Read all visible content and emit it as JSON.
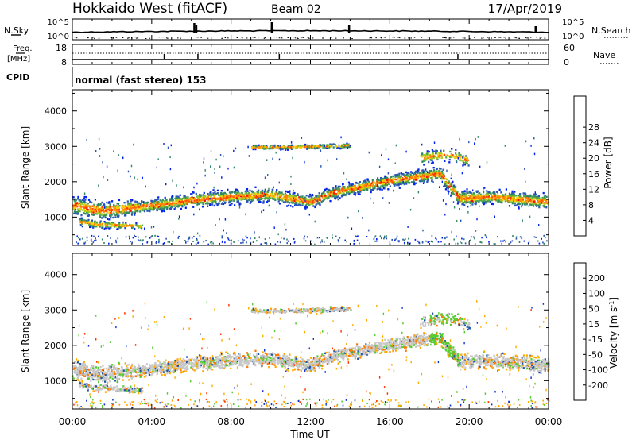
{
  "header": {
    "station": "Hokkaido West (fitACF)",
    "beam": "Beam 02",
    "date": "17/Apr/2019"
  },
  "panels": {
    "noise": {
      "left_label": "N.Sky",
      "right_label": "N.Search",
      "left_ticks": [
        "10^5",
        "10^0"
      ],
      "right_ticks": [
        "10^5",
        "10^0"
      ]
    },
    "freq": {
      "left_label_1": "Freq.",
      "left_label_2": "[MHz]",
      "right_label": "Nave",
      "left_ticks": [
        "18",
        "8"
      ],
      "right_ticks": [
        "60",
        "0"
      ]
    },
    "cpid": {
      "label": "CPID",
      "text": "normal (fast stereo) 153"
    }
  },
  "chart_data": [
    {
      "type": "heatmap",
      "quantity": "Power",
      "ylabel": "Slant Range [km]",
      "ylim": [
        200,
        4600
      ],
      "yticks": [
        "1000",
        "2000",
        "3000",
        "4000"
      ],
      "colorbar_label": "Power [dB]",
      "colorbar_ticks": [
        "4",
        "8",
        "12",
        "16",
        "20",
        "24",
        "28"
      ],
      "colorbar_range": [
        0,
        32
      ],
      "colors": [
        "#0022ee",
        "#2b56b3",
        "#338866",
        "#55aa44",
        "#aacc22",
        "#ffcc00",
        "#ff8800",
        "#ff4400",
        "#ee1100"
      ],
      "bands": [
        {
          "t": [
            0.0,
            1.5,
            4.0,
            6.0,
            8.0,
            10.0,
            12.0,
            13.0,
            16.0,
            18.5,
            19.5,
            21.0,
            24.0
          ],
          "r": [
            1350,
            1200,
            1350,
            1500,
            1600,
            1650,
            1450,
            1700,
            2050,
            2250,
            1550,
            1600,
            1450
          ],
          "w": [
            380,
            380,
            260,
            280,
            280,
            260,
            260,
            240,
            260,
            280,
            320,
            280,
            300
          ]
        },
        {
          "t": [
            0.3,
            1.2,
            3.5
          ],
          "r": [
            900,
            820,
            760
          ],
          "w": [
            160,
            160,
            100
          ]
        },
        {
          "t": [
            9.0,
            11.0,
            14.0
          ],
          "r": [
            3000,
            3000,
            3050
          ],
          "w": [
            90,
            90,
            90
          ]
        },
        {
          "t": [
            17.5,
            19.0,
            20.0
          ],
          "r": [
            2700,
            2800,
            2600
          ],
          "w": [
            260,
            260,
            260
          ]
        }
      ]
    },
    {
      "type": "heatmap",
      "quantity": "Velocity",
      "ylabel": "Slant Range [km]",
      "ylim": [
        200,
        4600
      ],
      "yticks": [
        "1000",
        "2000",
        "3000",
        "4000"
      ],
      "colorbar_label": "Velocity [m s^-1]",
      "colorbar_ticks": [
        "200",
        "100",
        "50",
        "15",
        "-15",
        "-50",
        "-100",
        "-200"
      ],
      "colors": [
        "#1133cc",
        "#2255aa",
        "#226633",
        "#55cc33",
        "#c8c8c8",
        "#ffaa00",
        "#ff7700",
        "#ff3300",
        "#ee0000"
      ],
      "bands": [
        {
          "t": [
            0.0,
            1.5,
            4.0,
            6.0,
            8.0,
            10.0,
            12.0,
            13.0,
            16.0,
            18.5,
            19.5,
            21.0,
            24.0
          ],
          "r": [
            1350,
            1200,
            1350,
            1500,
            1600,
            1650,
            1450,
            1700,
            2050,
            2250,
            1550,
            1600,
            1450
          ],
          "w": [
            380,
            380,
            260,
            280,
            280,
            260,
            260,
            240,
            260,
            280,
            320,
            280,
            300
          ]
        },
        {
          "t": [
            0.3,
            1.2,
            3.5
          ],
          "r": [
            900,
            820,
            760
          ],
          "w": [
            160,
            160,
            100
          ]
        },
        {
          "t": [
            9.0,
            11.0,
            14.0
          ],
          "r": [
            3000,
            3000,
            3050
          ],
          "w": [
            90,
            90,
            90
          ]
        },
        {
          "t": [
            17.5,
            19.0,
            20.0
          ],
          "r": [
            2700,
            2800,
            2600
          ],
          "w": [
            260,
            260,
            260
          ]
        }
      ]
    }
  ],
  "xaxis": {
    "label": "Time UT",
    "xlim": [
      0,
      24
    ],
    "ticks": [
      {
        "h": 0,
        "label": "00:00"
      },
      {
        "h": 4,
        "label": "04:00"
      },
      {
        "h": 8,
        "label": "08:00"
      },
      {
        "h": 12,
        "label": "12:00"
      },
      {
        "h": 16,
        "label": "16:00"
      },
      {
        "h": 20,
        "label": "20:00"
      },
      {
        "h": 24,
        "label": "00:00"
      }
    ]
  }
}
